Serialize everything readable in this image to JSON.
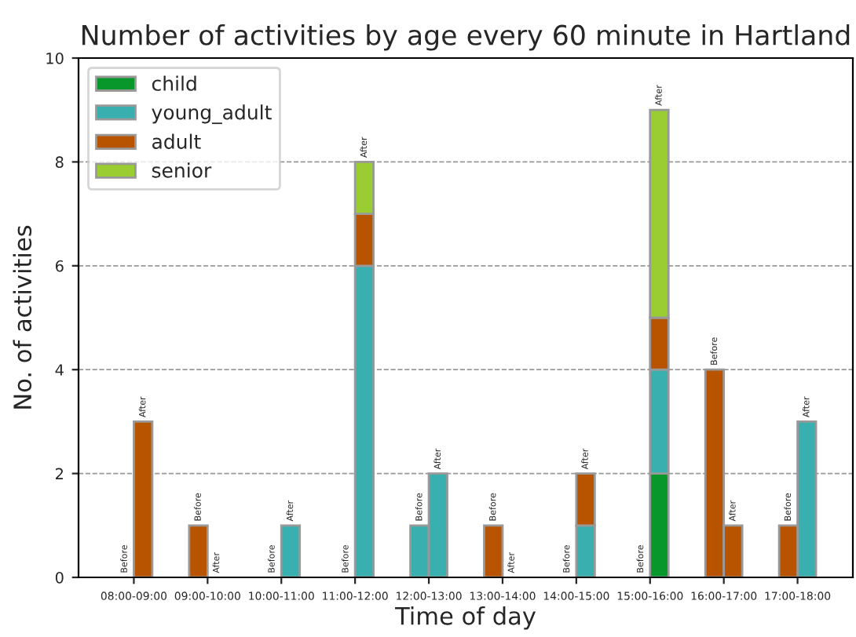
{
  "chart_data": {
    "type": "bar",
    "stacked": true,
    "title": "Number of activities by age every 60 minute in Hartland",
    "xlabel": "Time of day",
    "ylabel": "No. of activities",
    "categories": [
      null,
      null,
      null,
      null,
      null,
      null,
      null,
      null,
      null,
      null,
      null,
      null,
      null,
      null,
      null,
      null,
      null,
      null,
      null,
      null,
      null,
      null,
      null,
      null,
      null,
      null,
      null,
      null,
      null,
      null,
      null,
      null,
      null,
      null,
      null,
      null,
      null,
      null,
      null,
      null,
      null,
      null
    ],
    "series": [
      {
        "name": "child",
        "color": "#07972b",
        "values": [
          null,
          null,
          0,
          0,
          null,
          null,
          0,
          0,
          null,
          null,
          0,
          0,
          null,
          null,
          0,
          0,
          null,
          null,
          0,
          0,
          null,
          null,
          0,
          0,
          null,
          null,
          0,
          0,
          null,
          null,
          0,
          2,
          null,
          null,
          0,
          0,
          null,
          null,
          0,
          0,
          null,
          null
        ]
      },
      {
        "name": "young_adult",
        "color": "#3aafaf",
        "values": [
          null,
          null,
          0,
          0,
          null,
          null,
          0,
          0,
          null,
          null,
          0,
          1,
          null,
          null,
          0,
          6,
          null,
          null,
          1,
          2,
          null,
          null,
          0,
          0,
          null,
          null,
          0,
          1,
          null,
          null,
          0,
          2,
          null,
          null,
          0,
          0,
          null,
          null,
          0,
          3,
          null,
          null
        ]
      },
      {
        "name": "adult",
        "color": "#b85400",
        "values": [
          null,
          null,
          0,
          3,
          null,
          null,
          1,
          0,
          null,
          null,
          0,
          0,
          null,
          null,
          0,
          1,
          null,
          null,
          0,
          0,
          null,
          null,
          1,
          0,
          null,
          null,
          0,
          1,
          null,
          null,
          0,
          1,
          null,
          null,
          4,
          1,
          null,
          null,
          1,
          0,
          null,
          null
        ]
      },
      {
        "name": "senior",
        "color": "#9acd32",
        "values": [
          null,
          null,
          0,
          0,
          null,
          null,
          0,
          0,
          null,
          null,
          0,
          0,
          null,
          null,
          0,
          1,
          null,
          null,
          0,
          0,
          null,
          null,
          0,
          0,
          null,
          null,
          0,
          0,
          null,
          null,
          0,
          4,
          null,
          null,
          0,
          0,
          null,
          null,
          0,
          0,
          null,
          null
        ]
      }
    ],
    "annotations": [
      "08:00-09:00",
      "Before",
      "After",
      "09:00-10:00",
      "Before",
      "After",
      "10:00-11:00",
      "Before",
      "After",
      "11:00-12:00",
      "Before",
      "After",
      "12:00-13:00",
      "Before",
      "After",
      "13:00-14:00",
      "Before",
      "After",
      "14:00-15:00",
      "Before",
      "After",
      "15:00-16:00",
      "Before",
      "After",
      "16:00-17:00",
      "Before",
      "After",
      "17:00-18:00",
      "Before",
      "After"
    ],
    "ylim": [
      0,
      10
    ],
    "yticks": [
      0,
      2,
      4,
      6,
      8,
      10
    ],
    "grid": "y",
    "legend": "top left"
  }
}
